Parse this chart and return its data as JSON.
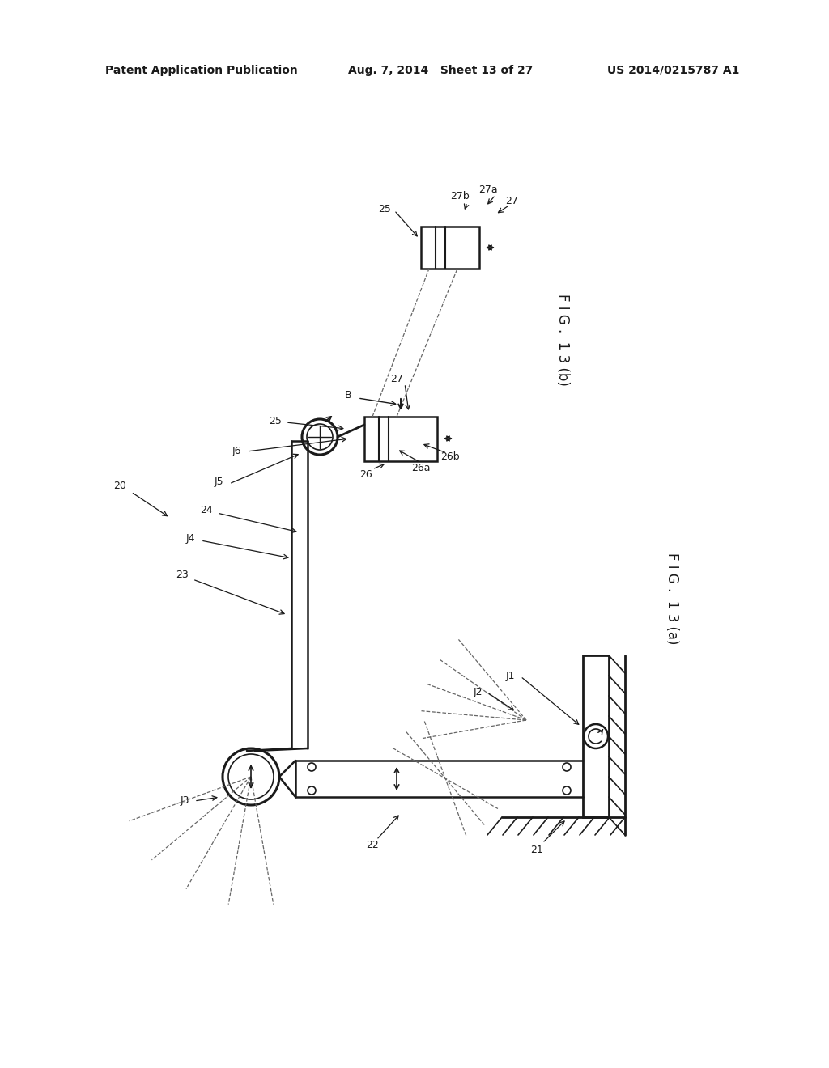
{
  "bg_color": "#ffffff",
  "header_left": "Patent Application Publication",
  "header_mid": "Aug. 7, 2014   Sheet 13 of 27",
  "header_right": "US 2014/0215787 A1",
  "fig_label_a": "F I G .  1 3 (a)",
  "fig_label_b": "F I G .  1 3 (b)",
  "line_color": "#1a1a1a",
  "text_color": "#1a1a1a"
}
